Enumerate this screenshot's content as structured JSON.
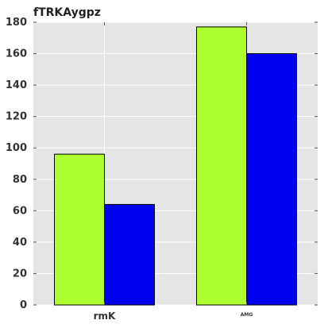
{
  "chart_data": {
    "type": "bar",
    "title": "fTRKAygpz",
    "categories": [
      "rmK",
      "AMG"
    ],
    "category_label_sizes": [
      "large",
      "small"
    ],
    "series": [
      {
        "values": [
          96,
          177
        ],
        "color": "#adff2f"
      },
      {
        "values": [
          64,
          160
        ],
        "color": "#0000ee"
      }
    ],
    "ylim": [
      0,
      180
    ],
    "yticks": [
      0,
      20,
      40,
      60,
      80,
      100,
      120,
      140,
      160,
      180
    ],
    "grid": true,
    "background": "#e5e5e5",
    "legend": "none"
  }
}
